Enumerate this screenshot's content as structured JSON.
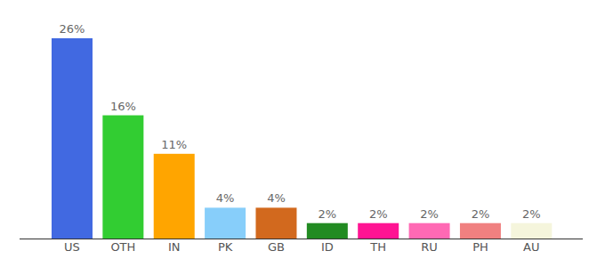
{
  "chart_data": {
    "type": "bar",
    "categories": [
      "US",
      "OTH",
      "IN",
      "PK",
      "GB",
      "ID",
      "TH",
      "RU",
      "PH",
      "AU"
    ],
    "values": [
      26,
      16,
      11,
      4,
      4,
      2,
      2,
      2,
      2,
      2
    ],
    "value_labels": [
      "26%",
      "16%",
      "11%",
      "4%",
      "4%",
      "2%",
      "2%",
      "2%",
      "2%",
      "2%"
    ],
    "colors": [
      "#4169e1",
      "#32cd32",
      "#ffa500",
      "#87cefa",
      "#d2691e",
      "#228b22",
      "#ff1493",
      "#ff69b4",
      "#f08080",
      "#f5f5dc"
    ],
    "ylim": [
      0,
      26
    ],
    "data_labels": true,
    "tick_labels": "x",
    "grid": false
  }
}
